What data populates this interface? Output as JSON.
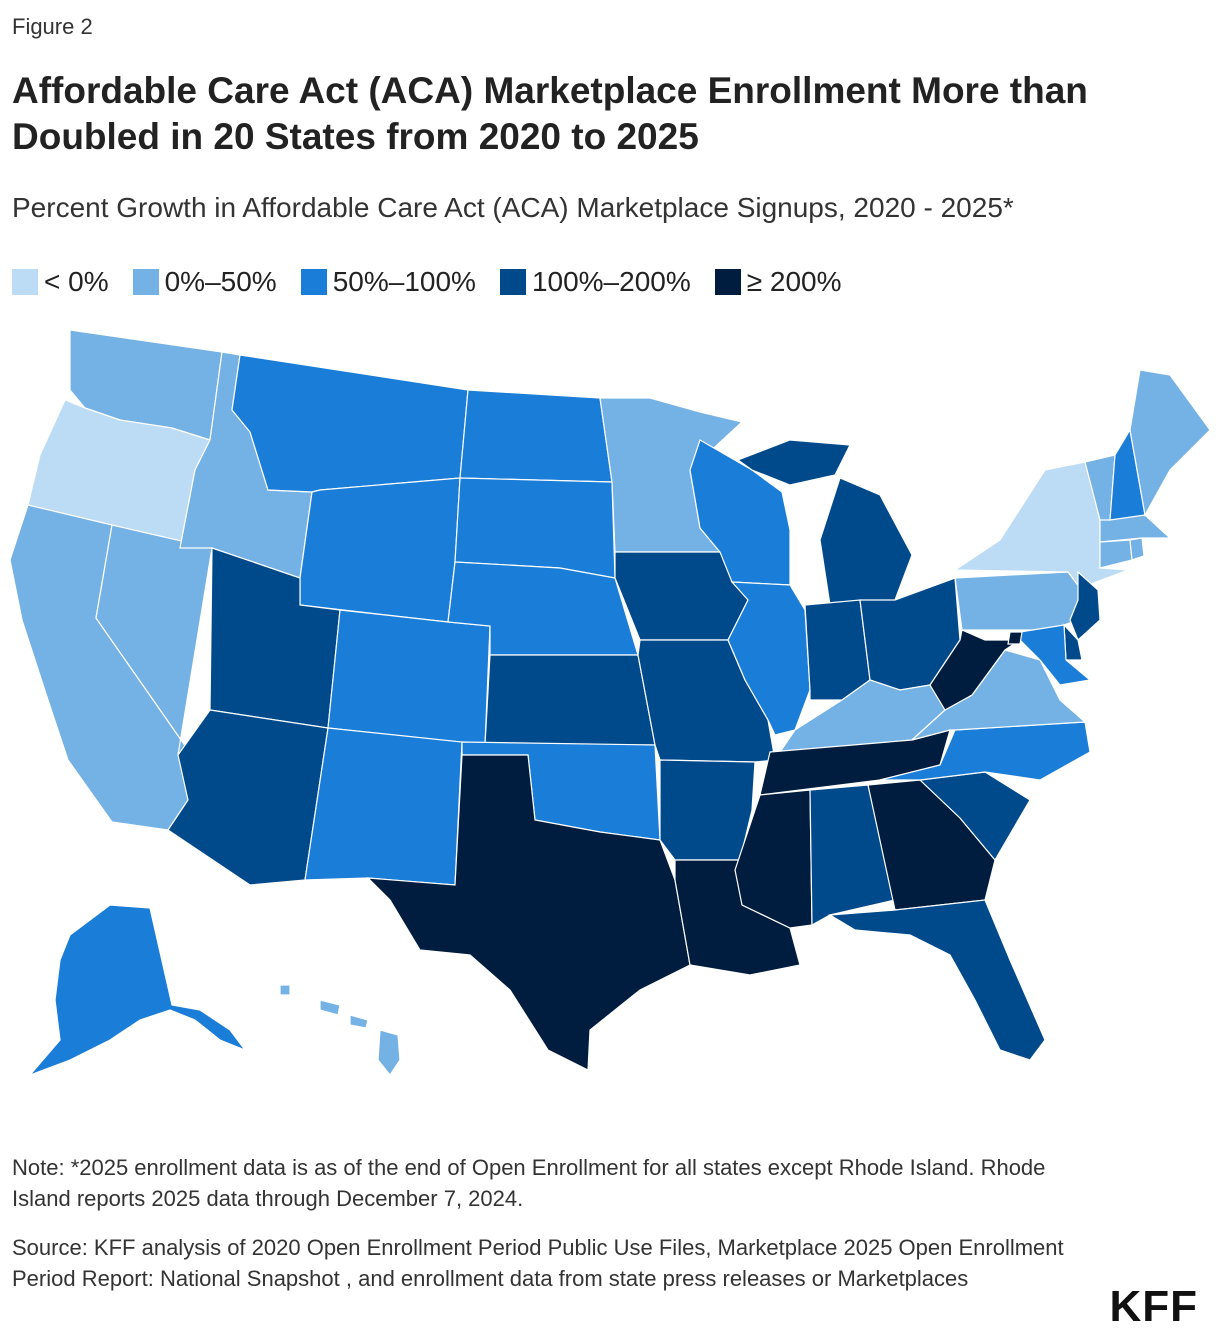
{
  "figure_label": "Figure 2",
  "title": "Affordable Care Act (ACA) Marketplace Enrollment More than Doubled in 20 States from 2020 to 2025",
  "subtitle": "Percent Growth in Affordable Care Act (ACA) Marketplace Signups, 2020 - 2025*",
  "legend": [
    {
      "label": "< 0%",
      "color": "#bcdcf5"
    },
    {
      "label": "0%–50%",
      "color": "#74b1e4"
    },
    {
      "label": "50%–100%",
      "color": "#1a7dd7"
    },
    {
      "label": "100%–200%",
      "color": "#004a8c"
    },
    {
      "label": "≥ 200%",
      "color": "#001d3f"
    }
  ],
  "map_data": {
    "type": "choropleth",
    "region": "United States",
    "states": [
      {
        "state": "WA",
        "category": "0%–50%"
      },
      {
        "state": "OR",
        "category": "< 0%"
      },
      {
        "state": "CA",
        "category": "0%–50%"
      },
      {
        "state": "NV",
        "category": "0%–50%"
      },
      {
        "state": "ID",
        "category": "0%–50%"
      },
      {
        "state": "MT",
        "category": "50%–100%"
      },
      {
        "state": "WY",
        "category": "50%–100%"
      },
      {
        "state": "UT",
        "category": "100%–200%"
      },
      {
        "state": "AZ",
        "category": "100%–200%"
      },
      {
        "state": "CO",
        "category": "50%–100%"
      },
      {
        "state": "NM",
        "category": "50%–100%"
      },
      {
        "state": "ND",
        "category": "50%–100%"
      },
      {
        "state": "SD",
        "category": "50%–100%"
      },
      {
        "state": "NE",
        "category": "50%–100%"
      },
      {
        "state": "KS",
        "category": "100%–200%"
      },
      {
        "state": "OK",
        "category": "50%–100%"
      },
      {
        "state": "TX",
        "category": "≥ 200%"
      },
      {
        "state": "MN",
        "category": "0%–50%"
      },
      {
        "state": "IA",
        "category": "100%–200%"
      },
      {
        "state": "MO",
        "category": "100%–200%"
      },
      {
        "state": "AR",
        "category": "100%–200%"
      },
      {
        "state": "LA",
        "category": "≥ 200%"
      },
      {
        "state": "WI",
        "category": "50%–100%"
      },
      {
        "state": "IL",
        "category": "50%–100%"
      },
      {
        "state": "MI",
        "category": "100%–200%"
      },
      {
        "state": "IN",
        "category": "100%–200%"
      },
      {
        "state": "OH",
        "category": "100%–200%"
      },
      {
        "state": "KY",
        "category": "0%–50%"
      },
      {
        "state": "TN",
        "category": "≥ 200%"
      },
      {
        "state": "MS",
        "category": "≥ 200%"
      },
      {
        "state": "AL",
        "category": "100%–200%"
      },
      {
        "state": "GA",
        "category": "≥ 200%"
      },
      {
        "state": "FL",
        "category": "100%–200%"
      },
      {
        "state": "SC",
        "category": "100%–200%"
      },
      {
        "state": "NC",
        "category": "50%–100%"
      },
      {
        "state": "VA",
        "category": "0%–50%"
      },
      {
        "state": "WV",
        "category": "≥ 200%"
      },
      {
        "state": "PA",
        "category": "0%–50%"
      },
      {
        "state": "NY",
        "category": "< 0%"
      },
      {
        "state": "NJ",
        "category": "100%–200%"
      },
      {
        "state": "DE",
        "category": "100%–200%"
      },
      {
        "state": "MD",
        "category": "50%–100%"
      },
      {
        "state": "DC",
        "category": "≥ 200%"
      },
      {
        "state": "CT",
        "category": "0%–50%"
      },
      {
        "state": "RI",
        "category": "0%–50%"
      },
      {
        "state": "MA",
        "category": "0%–50%"
      },
      {
        "state": "VT",
        "category": "0%–50%"
      },
      {
        "state": "NH",
        "category": "50%–100%"
      },
      {
        "state": "ME",
        "category": "0%–50%"
      },
      {
        "state": "AK",
        "category": "50%–100%"
      },
      {
        "state": "HI",
        "category": "0%–50%"
      }
    ]
  },
  "note": "Note: *2025 enrollment data is as of the end of Open Enrollment for all states except Rhode Island. Rhode Island reports 2025 data through December 7, 2024.",
  "source": "Source: KFF analysis of 2020 Open Enrollment Period Public Use Files, Marketplace 2025 Open Enrollment Period Report: National Snapshot , and enrollment data from state press releases or Marketplaces",
  "logo": "KFF"
}
